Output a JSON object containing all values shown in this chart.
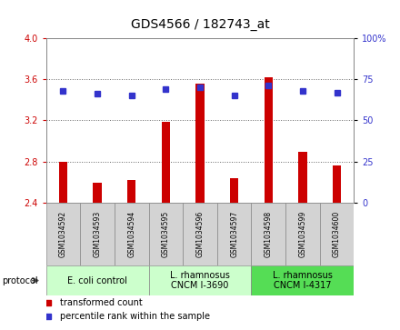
{
  "title": "GDS4566 / 182743_at",
  "samples": [
    "GSM1034592",
    "GSM1034593",
    "GSM1034594",
    "GSM1034595",
    "GSM1034596",
    "GSM1034597",
    "GSM1034598",
    "GSM1034599",
    "GSM1034600"
  ],
  "transformed_count": [
    2.8,
    2.6,
    2.62,
    3.19,
    3.56,
    2.64,
    3.62,
    2.9,
    2.76
  ],
  "percentile_rank": [
    68,
    66,
    65,
    69,
    70,
    65,
    71,
    68,
    67
  ],
  "ylim_left": [
    2.4,
    4.0
  ],
  "yticks_left": [
    2.4,
    2.8,
    3.2,
    3.6,
    4.0
  ],
  "ylim_right": [
    0,
    100
  ],
  "yticks_right": [
    0,
    25,
    50,
    75,
    100
  ],
  "ytick_right_labels": [
    "0",
    "25",
    "50",
    "75",
    "100%"
  ],
  "bar_color": "#cc0000",
  "dot_color": "#3333cc",
  "bar_bottom": 2.4,
  "bar_width": 0.25,
  "dot_size": 5,
  "protocol_groups": [
    {
      "label": "E. coli control",
      "start": 0,
      "end": 3,
      "color": "#ccffcc"
    },
    {
      "label": "L. rhamnosus\nCNCM I-3690",
      "start": 3,
      "end": 6,
      "color": "#ccffcc"
    },
    {
      "label": "L. rhamnosus\nCNCM I-4317",
      "start": 6,
      "end": 9,
      "color": "#55dd55"
    }
  ],
  "legend_red_label": "transformed count",
  "legend_blue_label": "percentile rank within the sample",
  "background_color": "#ffffff",
  "plot_bg_color": "#ffffff",
  "tick_color_left": "#cc0000",
  "tick_color_right": "#3333cc",
  "grid_color": "#666666",
  "sample_box_color": "#d3d3d3",
  "title_fontsize": 10,
  "tick_fontsize": 7,
  "sample_fontsize": 5.5,
  "proto_fontsize": 7,
  "legend_fontsize": 7,
  "protocol_label_fontsize": 7
}
